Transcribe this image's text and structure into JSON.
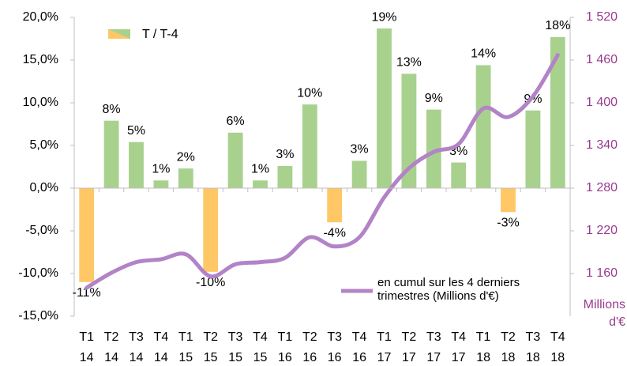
{
  "chart_data": {
    "type": "bar",
    "categories": [
      "T1 14",
      "T2 14",
      "T3 14",
      "T4 14",
      "T1 15",
      "T2 15",
      "T3 15",
      "T4 15",
      "T1 16",
      "T2 16",
      "T3 16",
      "T4 16",
      "T1 17",
      "T2 17",
      "T3 17",
      "T4 17",
      "T1 18",
      "T2 18",
      "T3 18",
      "T4 18"
    ],
    "series": [
      {
        "name": "T / T-4",
        "type": "bar",
        "color": "#a9d18e",
        "negative_color": "#ffc766",
        "values": [
          -11.0,
          7.9,
          5.4,
          0.9,
          2.3,
          -9.8,
          6.5,
          0.9,
          2.6,
          9.8,
          -4.0,
          3.2,
          18.7,
          13.4,
          9.2,
          3.0,
          14.4,
          -2.8,
          9.1,
          17.7
        ],
        "value_labels": [
          "-11%",
          "8%",
          "5%",
          "1%",
          "2%",
          "-10%",
          "6%",
          "1%",
          "3%",
          "10%",
          "-4%",
          "3%",
          "19%",
          "13%",
          "9%",
          "3%",
          "14%",
          "-3%",
          "9%",
          "18%"
        ]
      },
      {
        "name": "en cumul sur les 4 derniers trimestres (Millions d'€)",
        "type": "line",
        "axis": "y2",
        "color": "#b283c7",
        "values": [
          1140,
          1161,
          1176,
          1180,
          1187,
          1156,
          1173,
          1176,
          1182,
          1211,
          1198,
          1211,
          1267,
          1308,
          1331,
          1342,
          1392,
          1380,
          1409,
          1467
        ]
      }
    ],
    "ylim": [
      -15,
      20
    ],
    "yticks": [
      {
        "value": -15,
        "label": "-15,0%"
      },
      {
        "value": -10,
        "label": "-10,0%"
      },
      {
        "value": -5,
        "label": "-5,0%"
      },
      {
        "value": 0,
        "label": "0,0%"
      },
      {
        "value": 5,
        "label": "5,0%"
      },
      {
        "value": 10,
        "label": "10,0%"
      },
      {
        "value": 15,
        "label": "15,0%"
      },
      {
        "value": 20,
        "label": "20,0%"
      }
    ],
    "y2lim": [
      1100,
      1520
    ],
    "y2ticks": [
      {
        "value": 1160,
        "label": "1 160"
      },
      {
        "value": 1220,
        "label": "1 220"
      },
      {
        "value": 1280,
        "label": "1 280"
      },
      {
        "value": 1340,
        "label": "1 340"
      },
      {
        "value": 1400,
        "label": "1 400"
      },
      {
        "value": 1460,
        "label": "1 460"
      },
      {
        "value": 1520,
        "label": "1 520"
      }
    ],
    "y2label": "Millions d'€",
    "y2color": "#9a3b8e"
  }
}
